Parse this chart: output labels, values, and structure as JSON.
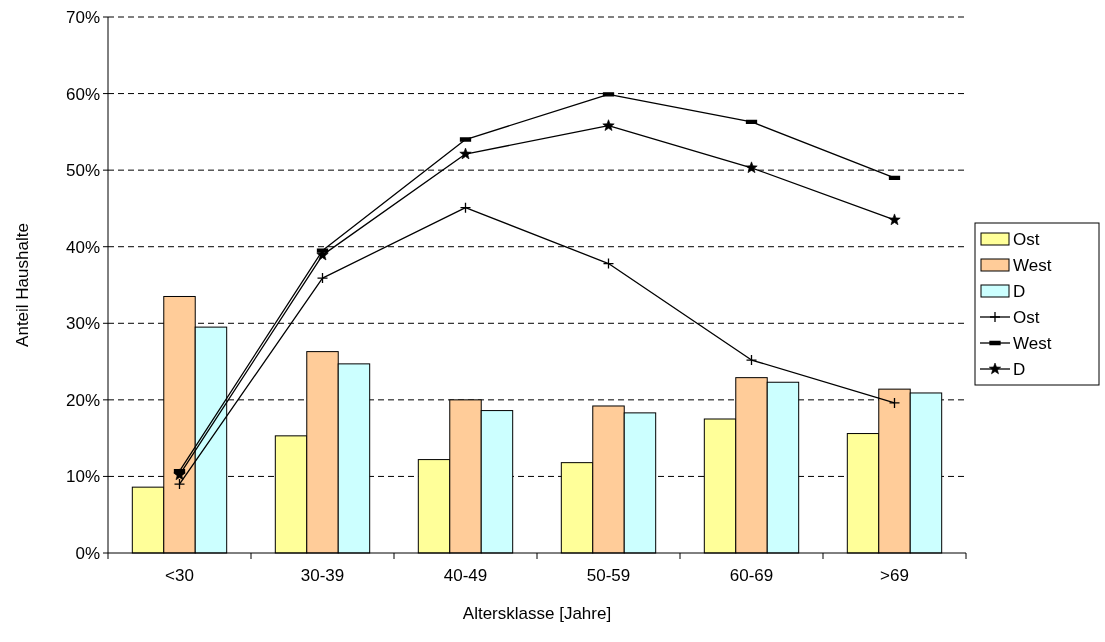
{
  "chart_data": {
    "type": "bar",
    "xlabel": "Altersklasse [Jahre]",
    "ylabel": "Anteil Haushalte",
    "categories": [
      "<30",
      "30-39",
      "40-49",
      "50-59",
      "60-69",
      ">69"
    ],
    "series": [
      {
        "name": "Ost",
        "color": "#ffff99",
        "values": [
          8.6,
          15.3,
          12.2,
          11.8,
          17.5,
          15.6
        ]
      },
      {
        "name": "West",
        "color": "#ffcc99",
        "values": [
          33.5,
          26.3,
          20.0,
          19.2,
          22.9,
          21.4
        ]
      },
      {
        "name": "D",
        "color": "#ccffff",
        "values": [
          29.5,
          24.7,
          18.6,
          18.3,
          22.3,
          20.9
        ]
      },
      {
        "name": "Ost",
        "type": "line",
        "color": "#000000",
        "marker": "cross",
        "values": [
          9.0,
          35.9,
          45.1,
          37.8,
          25.2,
          19.6
        ]
      },
      {
        "name": "West",
        "type": "line",
        "color": "#000000",
        "marker": "square",
        "values": [
          10.7,
          39.5,
          54.0,
          59.9,
          56.3,
          49.0
        ]
      },
      {
        "name": "D",
        "type": "line",
        "color": "#000000",
        "marker": "star",
        "values": [
          10.2,
          38.9,
          52.1,
          55.8,
          50.3,
          43.5
        ]
      }
    ],
    "ylim": [
      0,
      70
    ],
    "yticks": [
      {
        "value": 0,
        "label": "0%"
      },
      {
        "value": 10,
        "label": "10%"
      },
      {
        "value": 20,
        "label": "20%"
      },
      {
        "value": 30,
        "label": "30%"
      },
      {
        "value": 40,
        "label": "40%"
      },
      {
        "value": 50,
        "label": "50%"
      },
      {
        "value": 60,
        "label": "60%"
      },
      {
        "value": 70,
        "label": "70%"
      }
    ],
    "grid": "y",
    "legend": "right"
  }
}
